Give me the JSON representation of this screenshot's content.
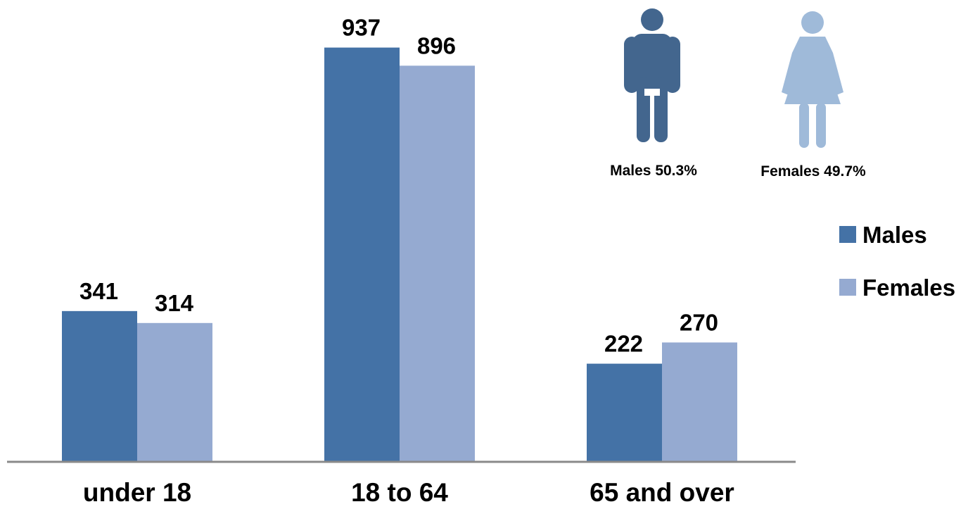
{
  "chart_data": {
    "type": "bar",
    "categories": [
      "under 18",
      "18 to 64",
      "65 and over"
    ],
    "series": [
      {
        "name": "Males",
        "values": [
          341,
          937,
          222
        ],
        "color": "#4472a6"
      },
      {
        "name": "Females",
        "values": [
          314,
          896,
          270
        ],
        "color": "#95aad1"
      }
    ],
    "ylim": [
      0,
      1000
    ],
    "grid": false,
    "legend_position": "right",
    "annotations": {
      "males_share": "Males 50.3%",
      "females_share": "Females 49.7%"
    },
    "icons": {
      "male": {
        "name": "male-person-icon",
        "color": "#43668e"
      },
      "female": {
        "name": "female-person-icon",
        "color": "#9fbad9"
      }
    }
  }
}
